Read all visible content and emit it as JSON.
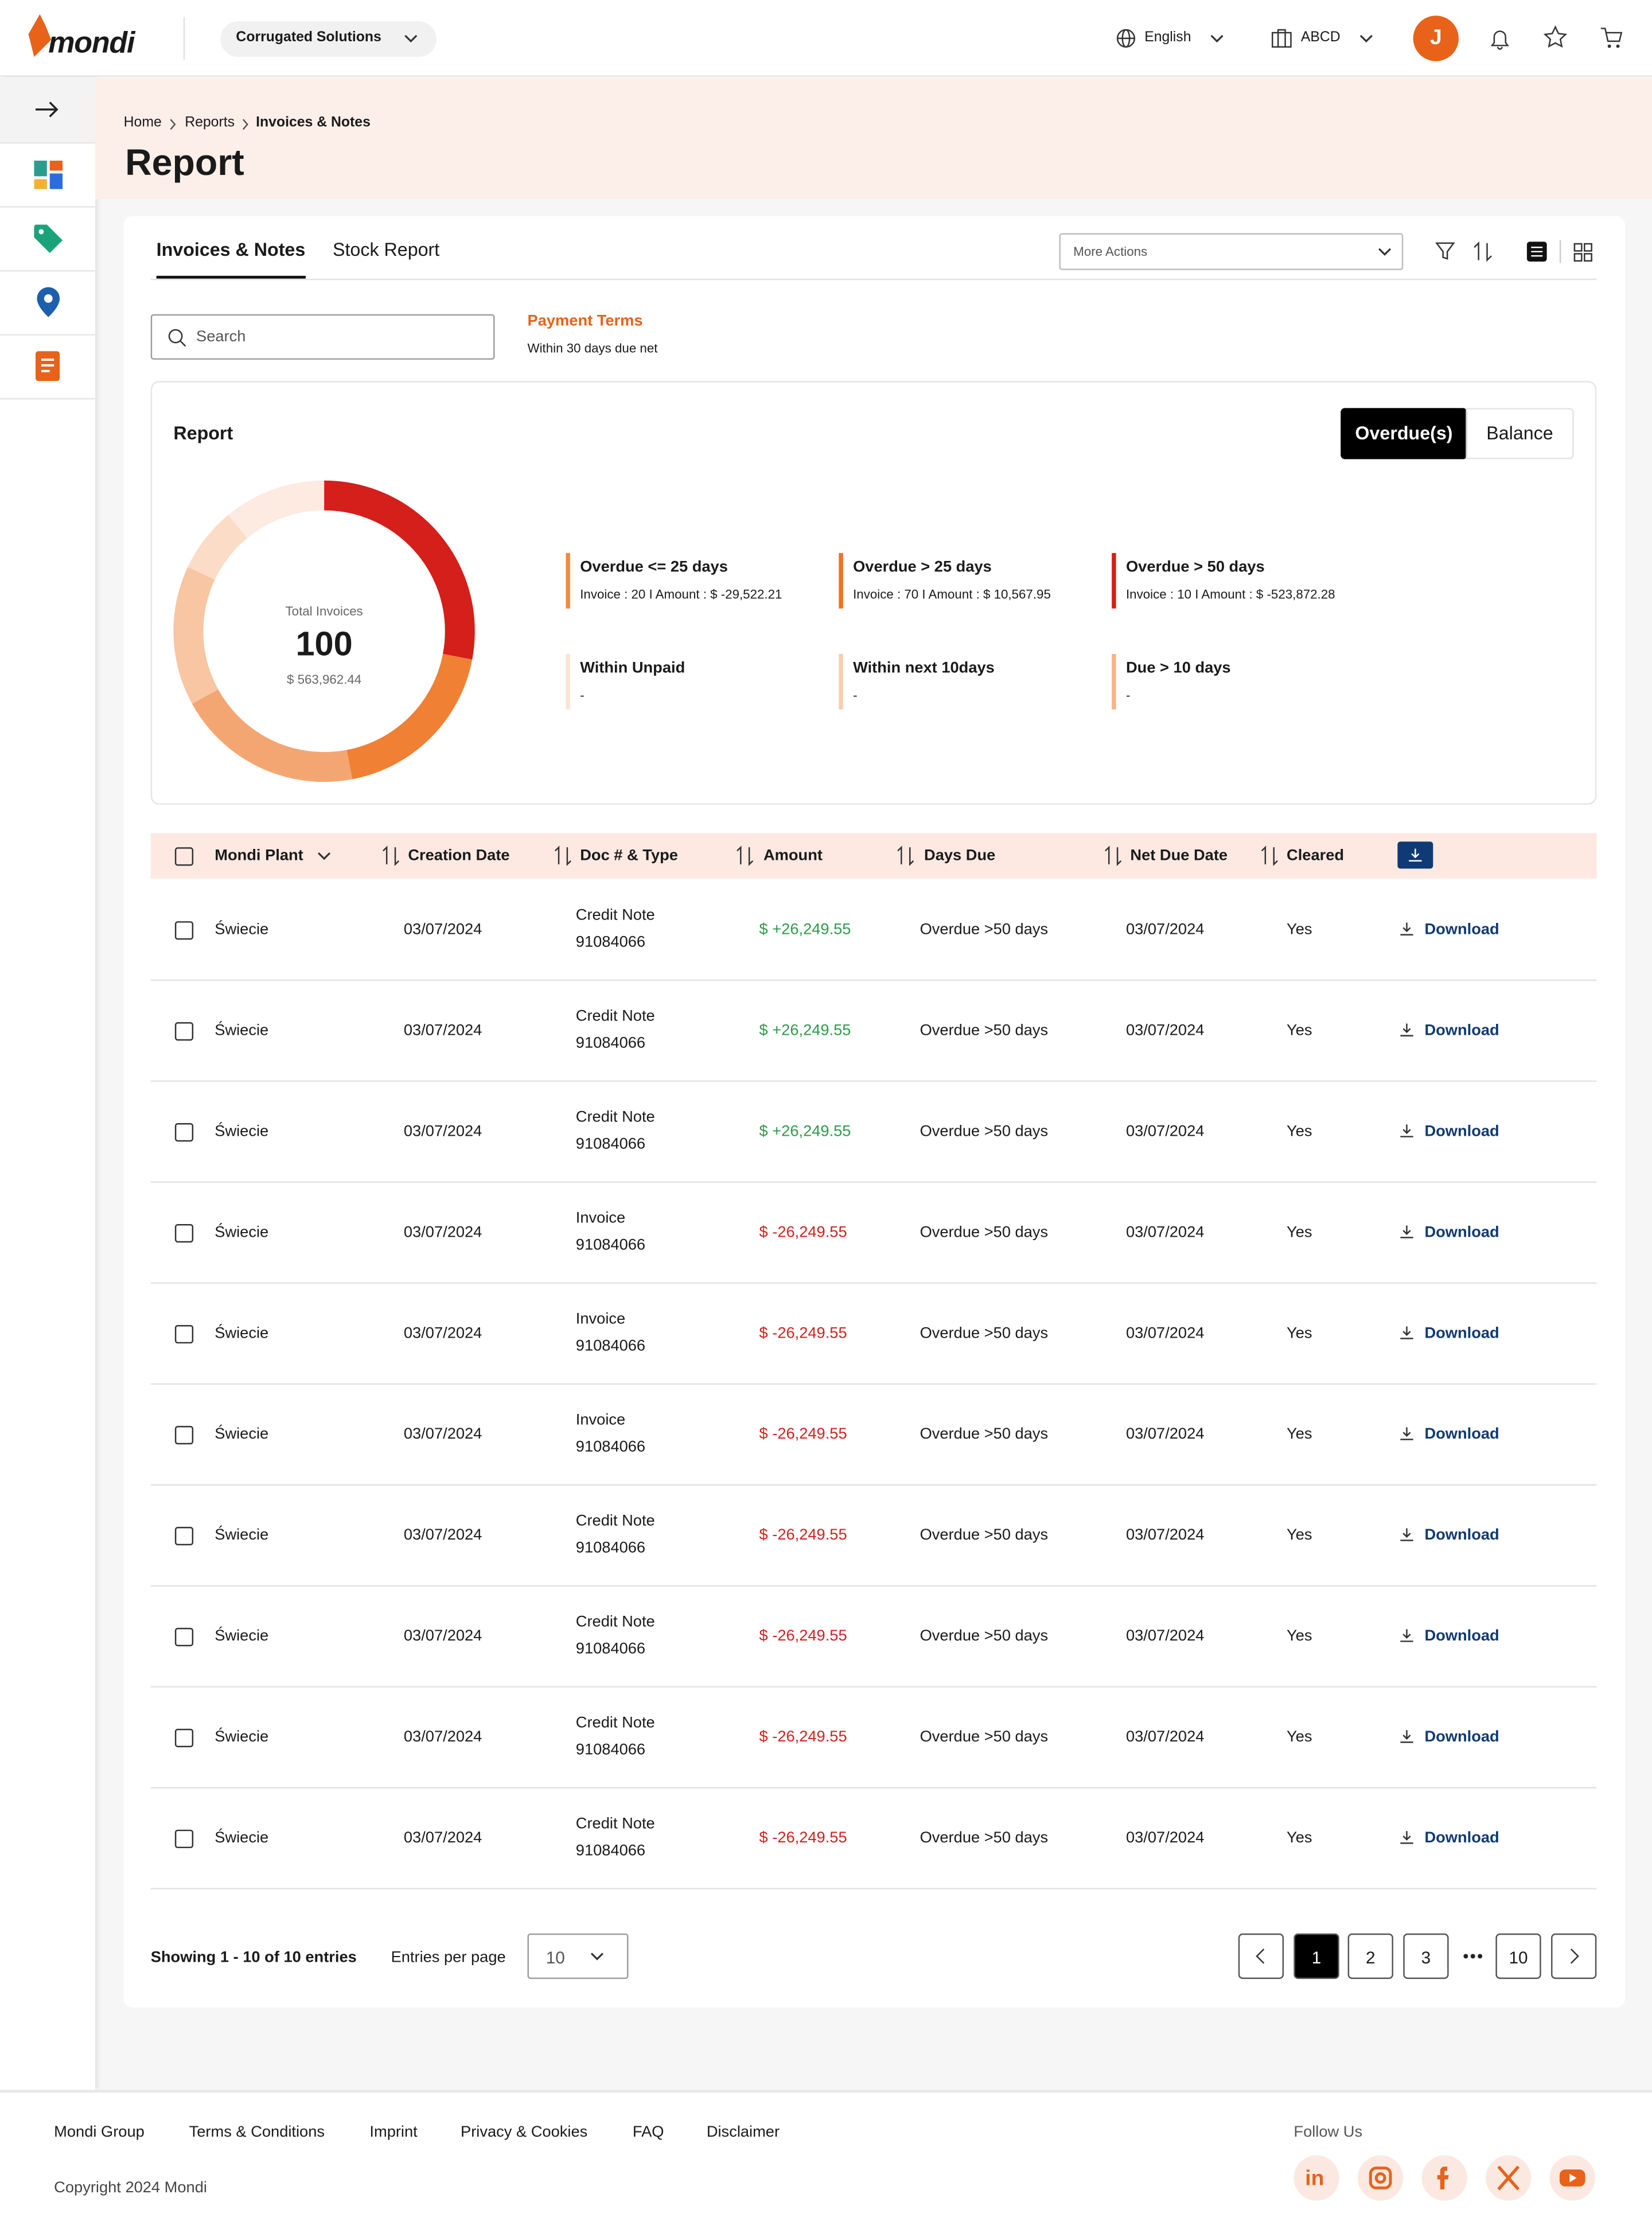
{
  "header": {
    "logo": "mondi",
    "business_unit": "Corrugated Solutions",
    "language": "English",
    "account": "ABCD",
    "user_initial": "J"
  },
  "breadcrumb": [
    "Home",
    "Reports",
    "Invoices & Notes"
  ],
  "page_title": "Report",
  "tabs": [
    "Invoices & Notes",
    "Stock Report"
  ],
  "more_actions": "More Actions",
  "search_placeholder": "Search",
  "payment_terms": {
    "label": "Payment Terms",
    "value": "Within 30 days due net"
  },
  "report": {
    "title": "Report",
    "toggle": [
      "Overdue(s)",
      "Balance"
    ],
    "total_label": "Total Invoices",
    "total_count": 100,
    "total_amount": "$ 563,962.44",
    "segments": [
      {
        "value": 28,
        "color": "#d41f1a"
      },
      {
        "value": 19,
        "color": "#ef8034"
      },
      {
        "value": 20,
        "color": "#f4a672"
      },
      {
        "value": 15,
        "color": "#f8c6a3"
      },
      {
        "value": 7,
        "color": "#fbdcc7"
      },
      {
        "value": 11,
        "color": "#fdeae0"
      }
    ],
    "legend": [
      {
        "title": "Overdue <= 25 days",
        "detail": "Invoice : 20 I Amount : $ -29,522.21",
        "color": "#f08a3c"
      },
      {
        "title": "Overdue > 25 days",
        "detail": "Invoice : 70 I Amount : $ 10,567.95",
        "color": "#ec7422"
      },
      {
        "title": "Overdue > 50 days",
        "detail": "Invoice : 10 I Amount : $ -523,872.28",
        "color": "#d41f1a"
      },
      {
        "title": "Within Unpaid",
        "detail": "-",
        "color": "#fde3d4"
      },
      {
        "title": "Within next 10days",
        "detail": "-",
        "color": "#f9cdb0"
      },
      {
        "title": "Due > 10 days",
        "detail": "-",
        "color": "#f5b48a"
      }
    ]
  },
  "table": {
    "columns": [
      "Mondi Plant",
      "Creation Date",
      "Doc # & Type",
      "Amount",
      "Days Due",
      "Net Due Date",
      "Cleared"
    ],
    "rows": [
      {
        "plant": "Świecie",
        "created": "03/07/2024",
        "doc_type": "Credit Note",
        "doc_no": "91084066",
        "amount": "$ +26,249.55",
        "days_due": "Overdue >50 days",
        "net_due": "03/07/2024",
        "cleared": "Yes",
        "action": "Download"
      },
      {
        "plant": "Świecie",
        "created": "03/07/2024",
        "doc_type": "Credit Note",
        "doc_no": "91084066",
        "amount": "$ +26,249.55",
        "days_due": "Overdue >50 days",
        "net_due": "03/07/2024",
        "cleared": "Yes",
        "action": "Download"
      },
      {
        "plant": "Świecie",
        "created": "03/07/2024",
        "doc_type": "Credit Note",
        "doc_no": "91084066",
        "amount": "$ +26,249.55",
        "days_due": "Overdue >50 days",
        "net_due": "03/07/2024",
        "cleared": "Yes",
        "action": "Download"
      },
      {
        "plant": "Świecie",
        "created": "03/07/2024",
        "doc_type": "Invoice",
        "doc_no": "91084066",
        "amount": "$ -26,249.55",
        "days_due": "Overdue >50 days",
        "net_due": "03/07/2024",
        "cleared": "Yes",
        "action": "Download"
      },
      {
        "plant": "Świecie",
        "created": "03/07/2024",
        "doc_type": "Invoice",
        "doc_no": "91084066",
        "amount": "$ -26,249.55",
        "days_due": "Overdue >50 days",
        "net_due": "03/07/2024",
        "cleared": "Yes",
        "action": "Download"
      },
      {
        "plant": "Świecie",
        "created": "03/07/2024",
        "doc_type": "Invoice",
        "doc_no": "91084066",
        "amount": "$ -26,249.55",
        "days_due": "Overdue >50 days",
        "net_due": "03/07/2024",
        "cleared": "Yes",
        "action": "Download"
      },
      {
        "plant": "Świecie",
        "created": "03/07/2024",
        "doc_type": "Credit Note",
        "doc_no": "91084066",
        "amount": "$ -26,249.55",
        "days_due": "Overdue >50 days",
        "net_due": "03/07/2024",
        "cleared": "Yes",
        "action": "Download"
      },
      {
        "plant": "Świecie",
        "created": "03/07/2024",
        "doc_type": "Credit Note",
        "doc_no": "91084066",
        "amount": "$ -26,249.55",
        "days_due": "Overdue >50 days",
        "net_due": "03/07/2024",
        "cleared": "Yes",
        "action": "Download"
      },
      {
        "plant": "Świecie",
        "created": "03/07/2024",
        "doc_type": "Credit Note",
        "doc_no": "91084066",
        "amount": "$ -26,249.55",
        "days_due": "Overdue >50 days",
        "net_due": "03/07/2024",
        "cleared": "Yes",
        "action": "Download"
      },
      {
        "plant": "Świecie",
        "created": "03/07/2024",
        "doc_type": "Credit Note",
        "doc_no": "91084066",
        "amount": "$ -26,249.55",
        "days_due": "Overdue >50 days",
        "net_due": "03/07/2024",
        "cleared": "Yes",
        "action": "Download"
      }
    ]
  },
  "pagination": {
    "showing": "Showing 1 - 10 of 10 entries",
    "entries_label": "Entries per page",
    "entries_value": 10,
    "pages": [
      1,
      2,
      3,
      10
    ]
  },
  "footer": {
    "links": [
      "Mondi Group",
      "Terms & Conditions",
      "Imprint",
      "Privacy & Cookies",
      "FAQ",
      "Disclaimer"
    ],
    "copyright": "Copyright 2024 Mondi",
    "follow": "Follow Us"
  }
}
